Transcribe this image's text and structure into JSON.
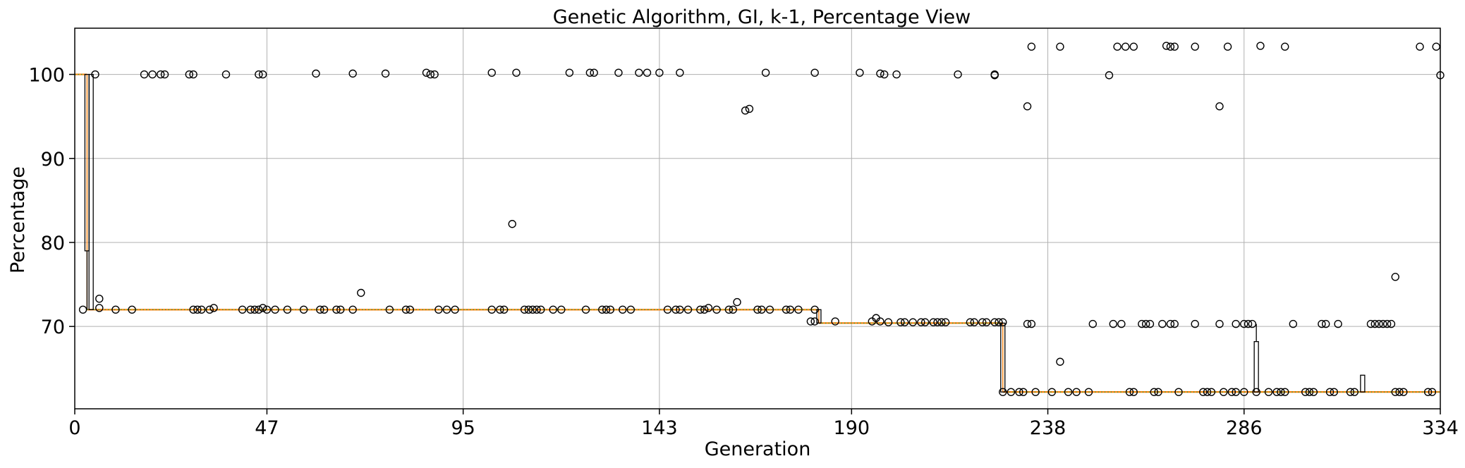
{
  "chart_data": {
    "type": "box",
    "title": "Genetic Algorithm, GI, k-1, Percentage View",
    "xlabel": "Generation",
    "ylabel": "Percentage",
    "xlim": [
      0,
      334
    ],
    "ylim": [
      60.2,
      105.5
    ],
    "x_ticks": [
      0,
      47,
      95,
      143,
      190,
      238,
      286,
      334
    ],
    "y_ticks": [
      70,
      80,
      90,
      100
    ],
    "grid": true,
    "median_color": "#ff7f0e",
    "mean_color": "#2ca02c",
    "box_color": "#000000",
    "median_segments": [
      {
        "x": [
          0,
          3
        ],
        "y": 100
      },
      {
        "x": [
          3,
          5
        ],
        "y": 72
      },
      {
        "x": [
          5,
          182
        ],
        "y": 72
      },
      {
        "x": [
          182,
          227
        ],
        "y": 70.4
      },
      {
        "x": [
          227,
          334
        ],
        "y": 62.2
      }
    ],
    "tall_boxes": [
      {
        "x": 3,
        "q1": 79,
        "q3": 100,
        "whisker_low": 72,
        "whisker_high": 100
      },
      {
        "x": 4,
        "q1": 72,
        "q3": 100,
        "whisker_low": 72,
        "whisker_high": 100
      },
      {
        "x": 182,
        "q1": 70.4,
        "q3": 72,
        "whisker_low": 70.4,
        "whisker_high": 72
      },
      {
        "x": 227,
        "q1": 62.2,
        "q3": 70.4,
        "whisker_low": 62.2,
        "whisker_high": 70.4
      },
      {
        "x": 289,
        "q1": 62.2,
        "q3": 68.2,
        "whisker_low": 62.2,
        "whisker_high": 70.3
      },
      {
        "x": 315,
        "q1": 62.2,
        "q3": 64.2,
        "whisker_low": 62.2,
        "whisker_high": 64.2
      }
    ],
    "outliers": [
      [
        2,
        72
      ],
      [
        5,
        100
      ],
      [
        6,
        73.3
      ],
      [
        6,
        72.2
      ],
      [
        10,
        72
      ],
      [
        14,
        72
      ],
      [
        17,
        100
      ],
      [
        19,
        100
      ],
      [
        21,
        100
      ],
      [
        22,
        100
      ],
      [
        28,
        100
      ],
      [
        29,
        100
      ],
      [
        29,
        72
      ],
      [
        30,
        72
      ],
      [
        31,
        72
      ],
      [
        33,
        72
      ],
      [
        34,
        72.2
      ],
      [
        37,
        100
      ],
      [
        41,
        72
      ],
      [
        43,
        72
      ],
      [
        44,
        72
      ],
      [
        45,
        72
      ],
      [
        45,
        100
      ],
      [
        46,
        100
      ],
      [
        46,
        72.2
      ],
      [
        47,
        72
      ],
      [
        49,
        72
      ],
      [
        52,
        72
      ],
      [
        56,
        72
      ],
      [
        59,
        100.1
      ],
      [
        60,
        72
      ],
      [
        61,
        72
      ],
      [
        64,
        72
      ],
      [
        65,
        72
      ],
      [
        68,
        100.1
      ],
      [
        68,
        72
      ],
      [
        70,
        74
      ],
      [
        76,
        100.1
      ],
      [
        77,
        72
      ],
      [
        81,
        72
      ],
      [
        82,
        72
      ],
      [
        86,
        100.2
      ],
      [
        87,
        100
      ],
      [
        88,
        100
      ],
      [
        89,
        72
      ],
      [
        91,
        72
      ],
      [
        93,
        72
      ],
      [
        102,
        100.2
      ],
      [
        102,
        72
      ],
      [
        104,
        72
      ],
      [
        105,
        72
      ],
      [
        107,
        82.2
      ],
      [
        108,
        100.2
      ],
      [
        110,
        72
      ],
      [
        111,
        72
      ],
      [
        112,
        72
      ],
      [
        113,
        72
      ],
      [
        114,
        72
      ],
      [
        117,
        72
      ],
      [
        119,
        72
      ],
      [
        121,
        100.2
      ],
      [
        125,
        72
      ],
      [
        126,
        100.2
      ],
      [
        127,
        100.2
      ],
      [
        129,
        72
      ],
      [
        130,
        72
      ],
      [
        131,
        72
      ],
      [
        133,
        100.2
      ],
      [
        134,
        72
      ],
      [
        136,
        72
      ],
      [
        138,
        100.2
      ],
      [
        140,
        100.2
      ],
      [
        143,
        100.2
      ],
      [
        145,
        72
      ],
      [
        147,
        72
      ],
      [
        148,
        72
      ],
      [
        148,
        100.2
      ],
      [
        150,
        72
      ],
      [
        153,
        72
      ],
      [
        154,
        72
      ],
      [
        155,
        72.2
      ],
      [
        157,
        72
      ],
      [
        160,
        72
      ],
      [
        161,
        72
      ],
      [
        162,
        72.9
      ],
      [
        164,
        95.7
      ],
      [
        165,
        95.9
      ],
      [
        167,
        72
      ],
      [
        168,
        72
      ],
      [
        169,
        100.2
      ],
      [
        170,
        72
      ],
      [
        174,
        72
      ],
      [
        175,
        72
      ],
      [
        177,
        72
      ],
      [
        180,
        70.6
      ],
      [
        181,
        70.6
      ],
      [
        181,
        72
      ],
      [
        181,
        100.2
      ],
      [
        186,
        70.6
      ],
      [
        192,
        100.2
      ],
      [
        195,
        70.6
      ],
      [
        196,
        71
      ],
      [
        197,
        70.6
      ],
      [
        197,
        100.1
      ],
      [
        198,
        100
      ],
      [
        199,
        70.5
      ],
      [
        201,
        100
      ],
      [
        202,
        70.5
      ],
      [
        203,
        70.5
      ],
      [
        205,
        70.5
      ],
      [
        207,
        70.5
      ],
      [
        208,
        70.5
      ],
      [
        210,
        70.5
      ],
      [
        211,
        70.5
      ],
      [
        212,
        70.5
      ],
      [
        213,
        70.5
      ],
      [
        216,
        100
      ],
      [
        219,
        70.5
      ],
      [
        220,
        70.5
      ],
      [
        222,
        70.5
      ],
      [
        223,
        70.5
      ],
      [
        225,
        70.5
      ],
      [
        225,
        100
      ],
      [
        225,
        99.9
      ],
      [
        226,
        70.5
      ],
      [
        227,
        70.5
      ],
      [
        227,
        62.2
      ],
      [
        229,
        62.2
      ],
      [
        231,
        62.2
      ],
      [
        232,
        62.2
      ],
      [
        233,
        96.2
      ],
      [
        233,
        70.3
      ],
      [
        234,
        70.3
      ],
      [
        234,
        103.3
      ],
      [
        235,
        62.2
      ],
      [
        239,
        62.2
      ],
      [
        241,
        65.8
      ],
      [
        241,
        103.3
      ],
      [
        243,
        62.2
      ],
      [
        245,
        62.2
      ],
      [
        248,
        62.2
      ],
      [
        249,
        70.3
      ],
      [
        253,
        99.9
      ],
      [
        254,
        70.3
      ],
      [
        255,
        103.3
      ],
      [
        256,
        70.3
      ],
      [
        257,
        103.3
      ],
      [
        258,
        62.2
      ],
      [
        259,
        62.2
      ],
      [
        259,
        103.3
      ],
      [
        261,
        70.3
      ],
      [
        262,
        70.3
      ],
      [
        263,
        70.3
      ],
      [
        264,
        62.2
      ],
      [
        265,
        62.2
      ],
      [
        266,
        70.3
      ],
      [
        267,
        103.4
      ],
      [
        268,
        70.3
      ],
      [
        268,
        103.3
      ],
      [
        269,
        70.3
      ],
      [
        269,
        103.3
      ],
      [
        270,
        62.2
      ],
      [
        274,
        70.3
      ],
      [
        274,
        103.3
      ],
      [
        276,
        62.2
      ],
      [
        277,
        62.2
      ],
      [
        278,
        62.2
      ],
      [
        280,
        70.3
      ],
      [
        280,
        96.2
      ],
      [
        281,
        62.2
      ],
      [
        282,
        103.3
      ],
      [
        283,
        62.2
      ],
      [
        284,
        62.2
      ],
      [
        284,
        70.3
      ],
      [
        286,
        70.3
      ],
      [
        286,
        62.2
      ],
      [
        287,
        70.3
      ],
      [
        288,
        70.3
      ],
      [
        289,
        62.2
      ],
      [
        290,
        103.4
      ],
      [
        292,
        62.2
      ],
      [
        294,
        62.2
      ],
      [
        295,
        62.2
      ],
      [
        296,
        62.2
      ],
      [
        296,
        103.3
      ],
      [
        298,
        70.3
      ],
      [
        301,
        62.2
      ],
      [
        302,
        62.2
      ],
      [
        303,
        62.2
      ],
      [
        305,
        70.3
      ],
      [
        306,
        70.3
      ],
      [
        307,
        62.2
      ],
      [
        308,
        62.2
      ],
      [
        309,
        70.3
      ],
      [
        312,
        62.2
      ],
      [
        313,
        62.2
      ],
      [
        317,
        70.3
      ],
      [
        318,
        70.3
      ],
      [
        319,
        70.3
      ],
      [
        320,
        70.3
      ],
      [
        321,
        70.3
      ],
      [
        322,
        70.3
      ],
      [
        323,
        62.2
      ],
      [
        324,
        62.2
      ],
      [
        325,
        62.2
      ],
      [
        323,
        75.9
      ],
      [
        329,
        103.3
      ],
      [
        331,
        62.2
      ],
      [
        332,
        62.2
      ],
      [
        333,
        103.3
      ],
      [
        334,
        99.9
      ]
    ]
  }
}
